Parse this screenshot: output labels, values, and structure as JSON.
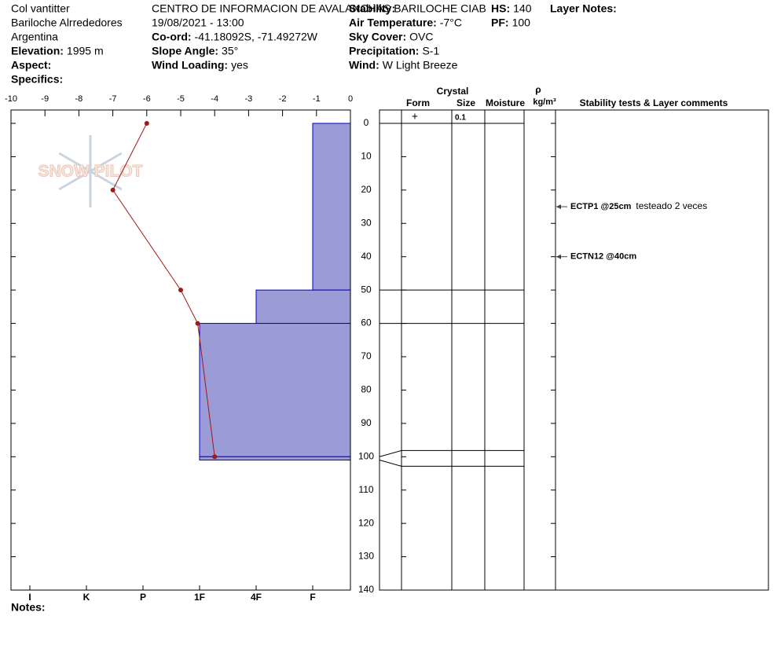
{
  "header": {
    "site": "Col vantitter",
    "area": "Bariloche Alrrededores",
    "country": "Argentina",
    "elevation": {
      "label": "Elevation:",
      "value": "1995 m"
    },
    "aspect": {
      "label": "Aspect:"
    },
    "specifics": {
      "label": "Specifics:"
    },
    "organization": "CENTRO DE INFORMACION DE AVALANCHAS BARILOCHE CIAB",
    "datetime": "19/08/2021 - 13:00",
    "coord": {
      "label": "Co-ord:",
      "value": "-41.18092S, -71.49272W"
    },
    "slope_angle": {
      "label": "Slope Angle:",
      "value": "35°"
    },
    "wind_loading": {
      "label": "Wind Loading:",
      "value": "yes"
    },
    "stability": {
      "label": "Stability:"
    },
    "air_temperature": {
      "label": "Air Temperature:",
      "value": "-7°C"
    },
    "sky_cover": {
      "label": "Sky Cover:",
      "value": "OVC"
    },
    "precipitation": {
      "label": "Precipitation:",
      "value": "S-1"
    },
    "wind": {
      "label": "Wind:",
      "value": "W Light Breeze"
    },
    "hs": {
      "label": "HS:",
      "value": 140
    },
    "pf": {
      "label": "PF:",
      "value": 100
    },
    "layer_notes": {
      "label": "Layer Notes:"
    }
  },
  "notes": {
    "label": "Notes:"
  },
  "logo": "SNOW PILOT",
  "chart_data": {
    "type": "snowpit",
    "temperature": {
      "xlim": [
        -10,
        0
      ],
      "xticks": [
        -10,
        -9,
        -8,
        -7,
        -6,
        -5,
        -4,
        -3,
        -2,
        -1,
        0
      ],
      "depth": [
        0,
        20,
        50,
        60,
        100
      ],
      "values": [
        -6,
        -7,
        -5,
        -4.5,
        -4
      ],
      "color": "#a01818"
    },
    "depth_axis": {
      "ylim": [
        0,
        140
      ],
      "yticks": [
        0,
        10,
        20,
        30,
        40,
        50,
        60,
        70,
        80,
        90,
        100,
        110,
        120,
        130,
        140
      ]
    },
    "hardness_scale": [
      "I",
      "K",
      "P",
      "1F",
      "4F",
      "F"
    ],
    "hardness_color": "#9b9bd6",
    "layers": [
      {
        "top": 0,
        "bottom": 50,
        "hardness": "F"
      },
      {
        "top": 50,
        "bottom": 60,
        "hardness": "4F"
      },
      {
        "top": 60,
        "bottom": 100,
        "hardness": "1F"
      },
      {
        "top": 100,
        "bottom": 101,
        "hardness": "1F"
      }
    ],
    "columns": {
      "form": "Form",
      "crystal": "Crystal",
      "size": "Size",
      "moisture": "Moisture",
      "density_symbol": "ρ",
      "density_unit": "kg/m³",
      "comments": "Stability tests & Layer comments"
    },
    "grains": [
      {
        "form": "+",
        "size": 0.1
      }
    ],
    "stability_tests": [
      {
        "depth": 25,
        "label": "ECTP1 @25cm",
        "comment": "testeado 2 veces"
      },
      {
        "depth": 40,
        "label": "ECTN12 @40cm"
      }
    ]
  }
}
